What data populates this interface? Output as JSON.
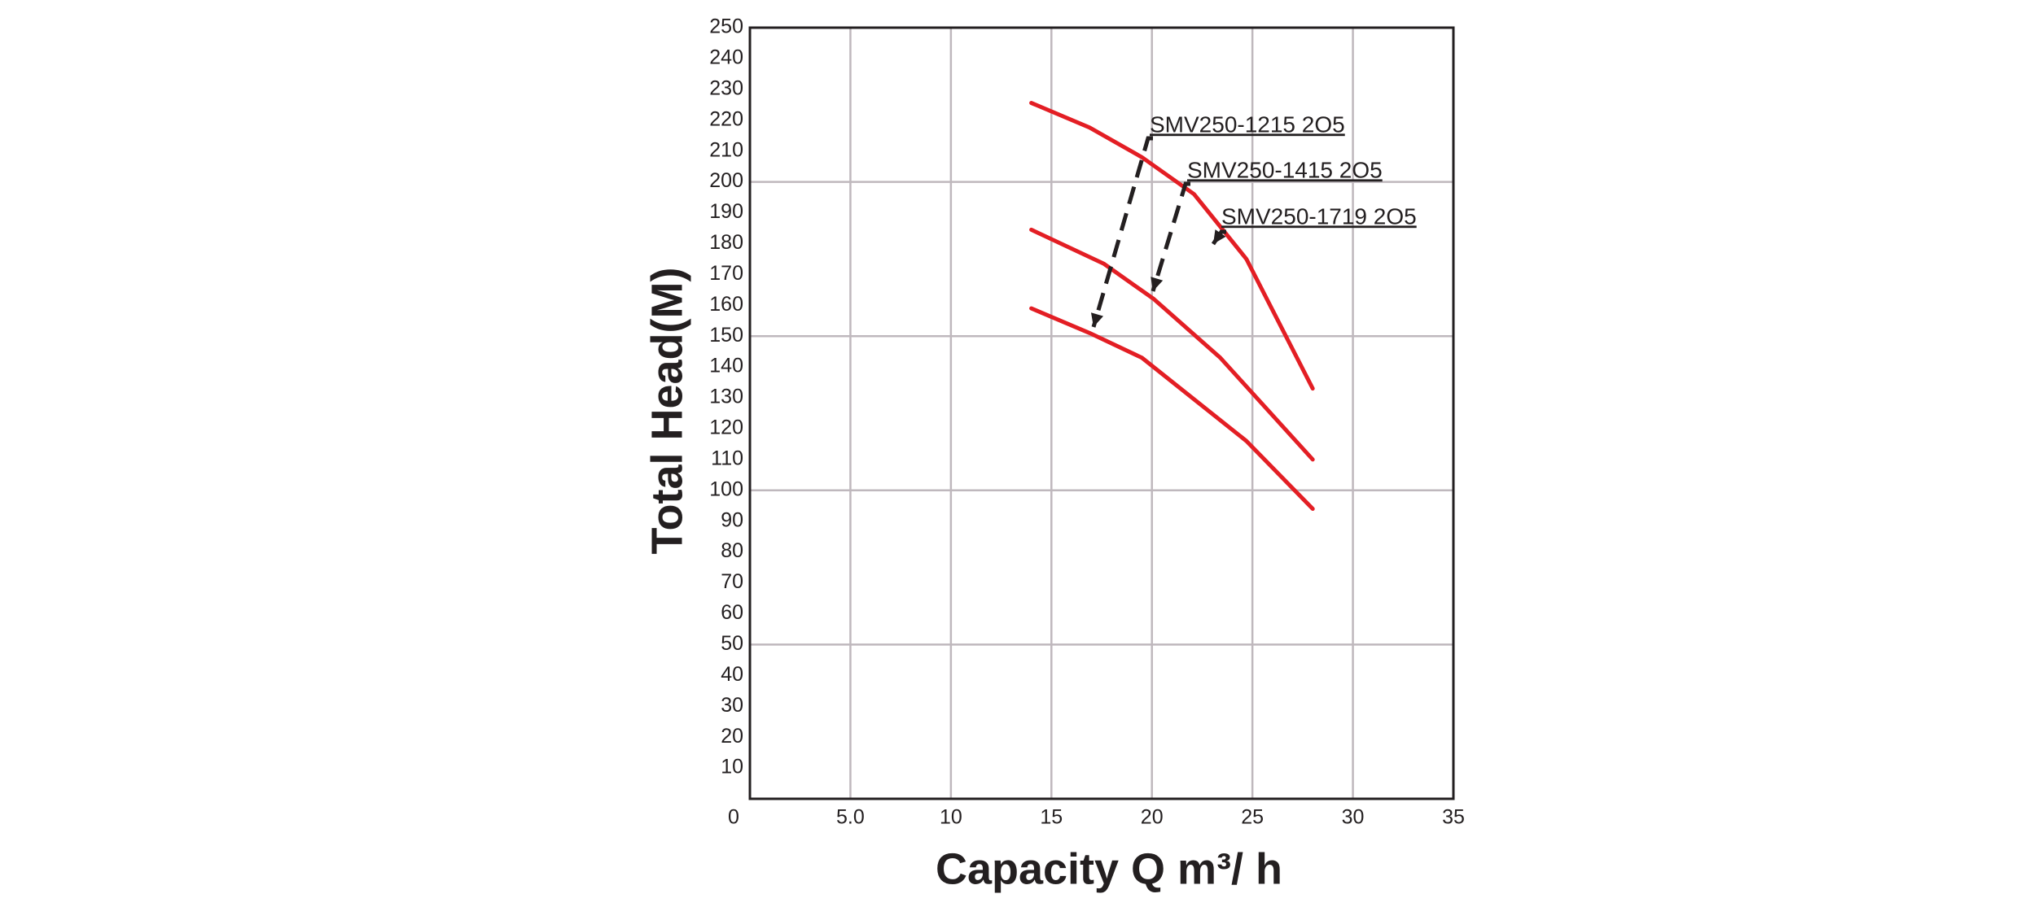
{
  "chart_data": {
    "type": "line",
    "x_label": "Capacity   Q  m³/ h",
    "y_label": "Total Head(M)",
    "xlim": [
      0,
      35
    ],
    "ylim": [
      0,
      250
    ],
    "xticks": [
      0,
      {
        "value": 5,
        "label": "5.0"
      },
      10,
      15,
      20,
      25,
      30,
      35
    ],
    "yticks": [
      10,
      20,
      30,
      40,
      50,
      60,
      70,
      80,
      90,
      100,
      110,
      120,
      130,
      140,
      150,
      160,
      170,
      180,
      190,
      200,
      210,
      220,
      230,
      240,
      250
    ],
    "ygrid": [
      50,
      100,
      150,
      200
    ],
    "grid": true,
    "series": [
      {
        "name": "SMV250-1719 2O5",
        "color": "#e31e24",
        "x": [
          14,
          16.9,
          19.5,
          22.1,
          24.7,
          28
        ],
        "values": [
          225.6,
          217.6,
          208,
          196,
          175,
          133
        ]
      },
      {
        "name": "SMV250-1415 2O5",
        "color": "#e31e24",
        "x": [
          14,
          17.6,
          20.1,
          23.4,
          28
        ],
        "values": [
          184.5,
          173.5,
          162,
          143,
          110
        ]
      },
      {
        "name": "SMV250-1215 2O5",
        "color": "#e31e24",
        "x": [
          14,
          16.9,
          19.5,
          24.7,
          28
        ],
        "values": [
          159,
          151,
          143,
          116,
          94
        ]
      }
    ]
  }
}
